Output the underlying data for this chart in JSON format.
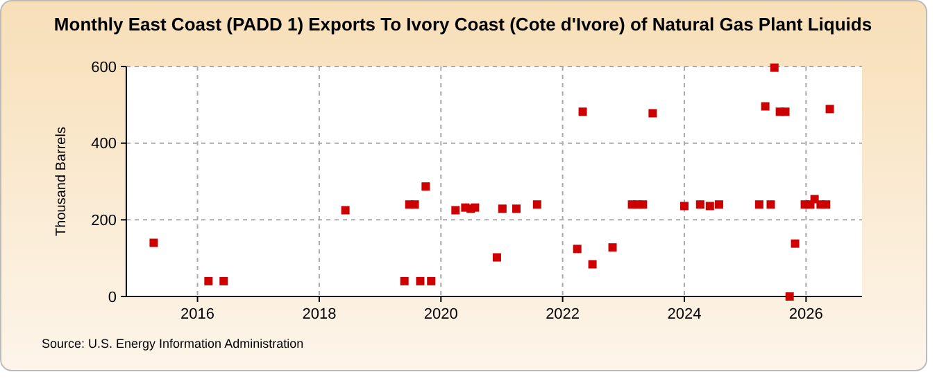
{
  "chart_data": {
    "type": "scatter",
    "title": "Monthly East Coast (PADD 1) Exports To Ivory Coast (Cote d'Ivore) of Natural Gas Plant Liquids",
    "ylabel": "Thousand Barrels",
    "annotations": [
      "Source: U.S. Energy Information Administration"
    ],
    "x": [
      2015.28,
      2016.18,
      2016.43,
      2018.43,
      2019.4,
      2019.48,
      2019.57,
      2019.66,
      2019.75,
      2019.84,
      2020.24,
      2020.4,
      2020.49,
      2020.56,
      2020.92,
      2021.01,
      2021.24,
      2021.58,
      2022.24,
      2022.33,
      2022.49,
      2022.82,
      2023.14,
      2023.23,
      2023.32,
      2023.48,
      2024.0,
      2024.26,
      2024.42,
      2024.57,
      2025.23,
      2025.33,
      2025.42,
      2025.48,
      2025.57,
      2025.66,
      2025.73,
      2025.82,
      2025.98,
      2026.07,
      2026.14,
      2026.24,
      2026.33,
      2026.39
    ],
    "series": [
      {
        "color": "#cc0000",
        "values": [
          140,
          40,
          40,
          225,
          40,
          240,
          240,
          40,
          287,
          40,
          225,
          232,
          229,
          232,
          102,
          229,
          229,
          240,
          124,
          482,
          84,
          128,
          240,
          240,
          240,
          478,
          236,
          240,
          236,
          240,
          240,
          496,
          240,
          597,
          482,
          482,
          0,
          138,
          240,
          240,
          254,
          240,
          240,
          489
        ]
      }
    ],
    "xlim": [
      2014.83,
      2026.92
    ],
    "xticks": [
      {
        "value": 2016,
        "label": "2016"
      },
      {
        "value": 2018,
        "label": "2018"
      },
      {
        "value": 2020,
        "label": "2020"
      },
      {
        "value": 2022,
        "label": "2022"
      },
      {
        "value": 2024,
        "label": "2024"
      },
      {
        "value": 2026,
        "label": "2026"
      }
    ],
    "ylim": [
      0,
      600
    ],
    "yticks": [
      0,
      200,
      400,
      600
    ],
    "grid": true,
    "marker": "square"
  }
}
